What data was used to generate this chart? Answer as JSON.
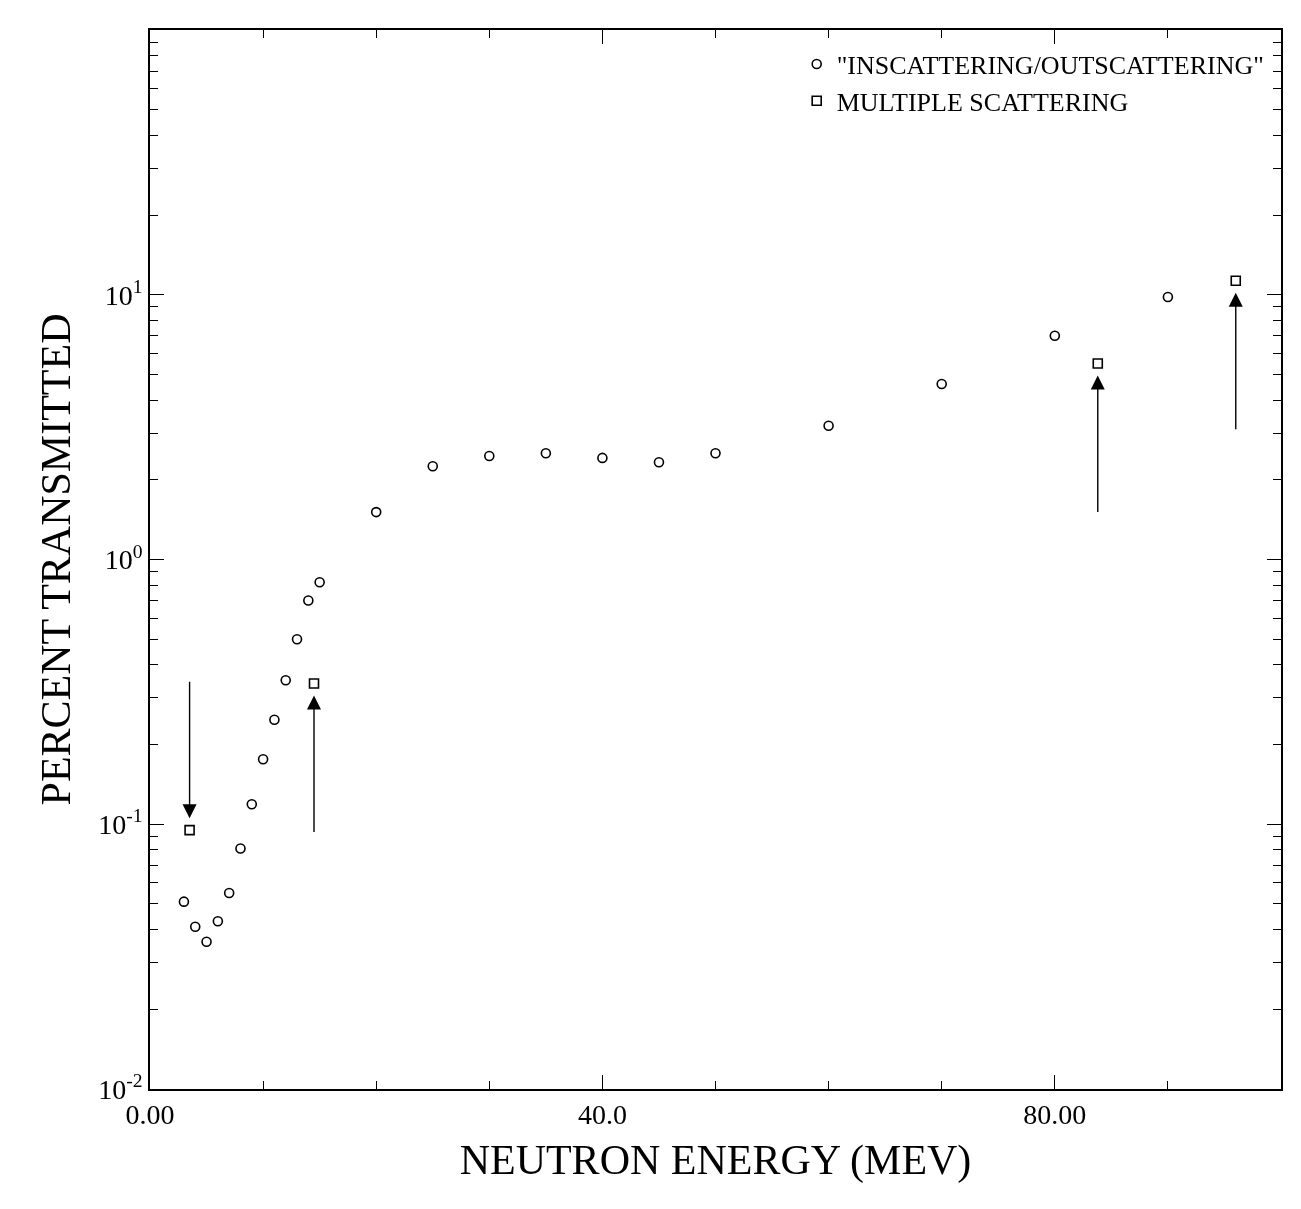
{
  "chart_data": {
    "type": "scatter",
    "xlabel": "NEUTRON ENERGY (MEV)",
    "ylabel": "PERCENT TRANSMITTED",
    "log": "y",
    "legend": "top right",
    "xlim": [
      0,
      100
    ],
    "xticks": [
      {
        "value": 0,
        "label": "0.00"
      },
      {
        "value": 40,
        "label": "40.0"
      },
      {
        "value": 80,
        "label": "80.00"
      }
    ],
    "ylim": [
      0.01,
      100
    ],
    "yticks": [
      {
        "value": 0.01,
        "label": "10$^{-2}$"
      },
      {
        "value": 0.1,
        "label": "10$^{-1}$"
      },
      {
        "value": 1,
        "label": "10$^{0}$"
      },
      {
        "value": 10,
        "label": "10$^{1}$"
      },
      {
        "value": 100,
        "label": null
      }
    ],
    "series": [
      {
        "name": "\"INSCATTERING/OUTSCATTERING\"",
        "color": "#000000",
        "marker": "circle",
        "x": [
          3,
          4,
          5,
          6,
          7,
          8,
          9,
          10,
          11,
          12,
          13,
          14,
          15,
          20,
          25,
          30,
          35,
          40,
          45,
          50,
          60,
          70,
          80,
          90
        ],
        "values": [
          0.051,
          0.041,
          0.036,
          0.043,
          0.055,
          0.081,
          0.119,
          0.176,
          0.248,
          0.35,
          0.5,
          0.7,
          0.82,
          1.51,
          2.25,
          2.46,
          2.52,
          2.42,
          2.33,
          2.52,
          3.2,
          4.6,
          7.0,
          9.8
        ]
      },
      {
        "name": "MULTIPLE SCATTERING",
        "color": "#000000",
        "marker": "square",
        "x": [
          3.5,
          14.5,
          83.8,
          96
        ],
        "values": [
          0.095,
          0.34,
          5.5,
          11.3
        ]
      }
    ]
  }
}
